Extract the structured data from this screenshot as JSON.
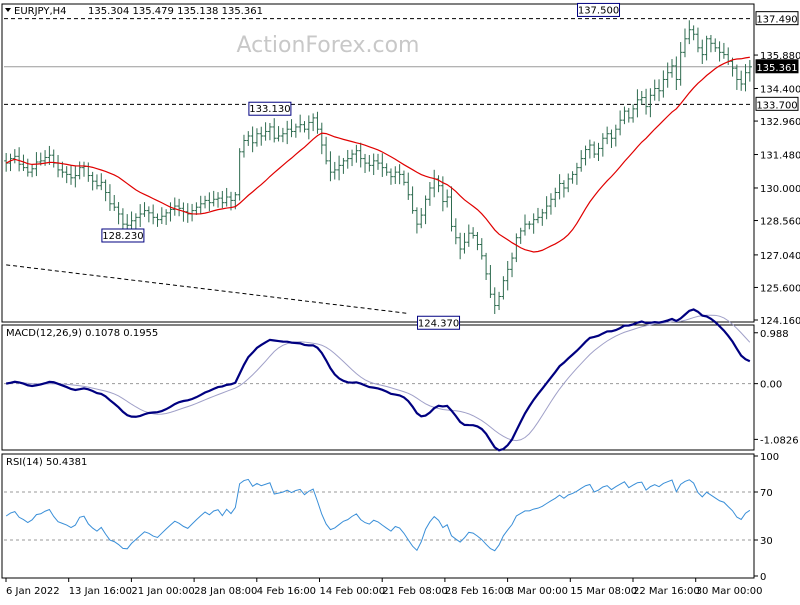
{
  "chart_data": [
    {
      "type": "candlestick",
      "title": "EURJPY,H4",
      "ohlc_readout": "135.304 135.479 135.138 135.361",
      "watermark": "ActionForex.com",
      "ylim": [
        124.16,
        138.05
      ],
      "yticks": [
        124.16,
        125.6,
        127.04,
        128.56,
        130.0,
        131.48,
        132.96,
        134.4,
        135.88
      ],
      "ytick_labels": [
        "124.160",
        "125.600",
        "127.040",
        "128.560",
        "130.000",
        "131.480",
        "132.960",
        "134.400",
        "135.880"
      ],
      "levels": [
        {
          "value": 137.49,
          "label": "137.490",
          "style": "dashed"
        },
        {
          "value": 135.361,
          "label": "135.361",
          "style": "solid",
          "current_price": true
        },
        {
          "value": 133.7,
          "label": "133.700",
          "style": "dashed"
        }
      ],
      "trendline": {
        "from": [
          0,
          126.6
        ],
        "to": [
          93,
          124.45
        ],
        "style": "dashed"
      },
      "annotations": [
        {
          "text": "128.230",
          "bar": 27,
          "value": 128.23,
          "pos": "below"
        },
        {
          "text": "133.130",
          "bar": 61,
          "value": 133.13,
          "pos": "above"
        },
        {
          "text": "124.370",
          "bar": 100,
          "value": 124.37,
          "pos": "below"
        },
        {
          "text": "137.500",
          "bar": 137,
          "value": 137.5,
          "pos": "above"
        }
      ],
      "ma_color": "#e00000",
      "bar_color": "#2e6b4f",
      "close": [
        131.1,
        131.3,
        131.4,
        131.05,
        130.9,
        130.7,
        130.85,
        131.15,
        131.2,
        131.35,
        131.45,
        131.1,
        130.8,
        130.7,
        130.6,
        130.45,
        130.55,
        130.9,
        130.95,
        130.55,
        130.3,
        130.1,
        130.25,
        129.8,
        129.3,
        129.15,
        128.85,
        128.4,
        128.35,
        128.55,
        128.7,
        128.85,
        129.0,
        128.9,
        128.7,
        128.6,
        128.75,
        128.9,
        129.05,
        129.2,
        129.1,
        128.95,
        128.85,
        129.0,
        129.15,
        129.3,
        129.45,
        129.35,
        129.5,
        129.55,
        129.35,
        129.6,
        129.45,
        129.7,
        131.6,
        132.1,
        132.3,
        132.0,
        132.4,
        132.3,
        132.5,
        132.7,
        132.2,
        132.3,
        132.4,
        132.6,
        132.5,
        132.7,
        132.8,
        132.6,
        132.9,
        133.1,
        132.6,
        131.9,
        131.2,
        130.7,
        130.8,
        131.0,
        131.2,
        131.3,
        131.5,
        131.65,
        131.3,
        131.1,
        131.0,
        131.2,
        131.1,
        130.9,
        130.7,
        130.5,
        130.7,
        130.6,
        130.25,
        129.7,
        129.0,
        128.4,
        128.8,
        129.5,
        130.0,
        130.4,
        130.1,
        129.4,
        129.6,
        128.3,
        127.8,
        127.3,
        127.6,
        128.0,
        127.9,
        127.5,
        127.0,
        126.2,
        125.3,
        124.8,
        125.2,
        125.9,
        126.4,
        126.9,
        127.8,
        128.1,
        128.4,
        128.4,
        128.6,
        128.7,
        128.9,
        129.2,
        129.5,
        129.8,
        130.2,
        130.0,
        130.4,
        130.6,
        130.9,
        131.3,
        131.7,
        131.9,
        131.5,
        131.75,
        132.2,
        132.4,
        132.2,
        132.6,
        133.0,
        133.4,
        133.1,
        133.5,
        133.9,
        134.0,
        133.6,
        134.1,
        134.4,
        134.3,
        134.8,
        135.1,
        135.4,
        134.8,
        136.0,
        136.6,
        137.0,
        136.8,
        136.2,
        135.9,
        136.6,
        136.4,
        136.2,
        136.0,
        135.9,
        135.6,
        135.3,
        134.8,
        134.6,
        135.1,
        135.36
      ],
      "xtick_labels": [
        "6 Jan 2022",
        "13 Jan 16:00",
        "21 Jan 00:00",
        "28 Jan 08:00",
        "4 Feb 16:00",
        "14 Feb 00:00",
        "21 Feb 08:00",
        "28 Feb 16:00",
        "8 Mar 00:00",
        "15 Mar 08:00",
        "22 Mar 16:00",
        "30 Mar 00:00"
      ]
    },
    {
      "type": "line",
      "title": "MACD(12,26,9) 0.1078 0.1955",
      "ylim": [
        -1.25,
        1.1
      ],
      "yticks": [
        0.988,
        0.0,
        -1.0826
      ],
      "ytick_labels": [
        "0.988",
        "0.00",
        "-1.0826"
      ],
      "series": [
        {
          "color": "#000080"
        },
        {
          "color": "#a0a0c8"
        }
      ]
    },
    {
      "type": "line",
      "title": "RSI(14) 50.4381",
      "ylim": [
        0,
        100
      ],
      "yticks": [
        100,
        70,
        30,
        0
      ],
      "ytick_labels": [
        "100",
        "70",
        "30",
        "0"
      ],
      "series": [
        {
          "color": "#3a8fd8"
        }
      ]
    }
  ]
}
